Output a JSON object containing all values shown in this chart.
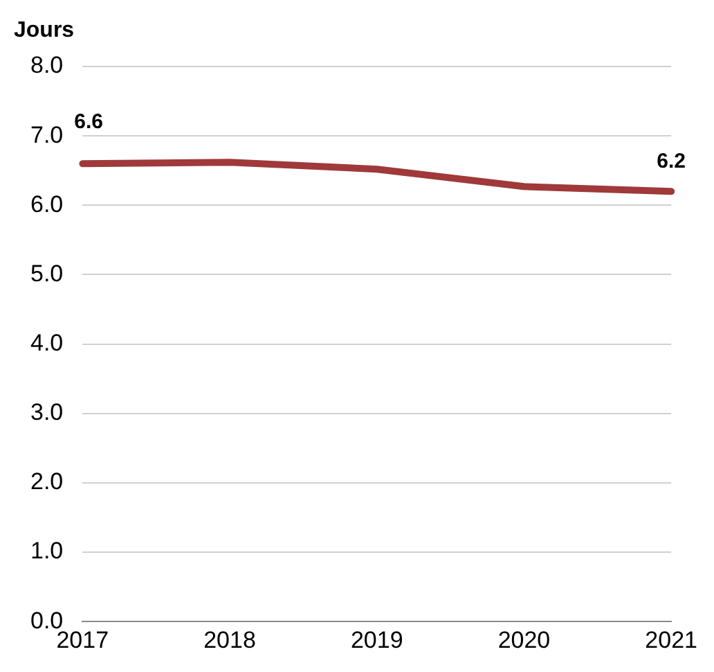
{
  "chart_data": {
    "type": "line",
    "ylabel": "Jours",
    "categories": [
      "2017",
      "2018",
      "2019",
      "2020",
      "2021"
    ],
    "series": [
      {
        "color": "#a0393a",
        "values": [
          6.6,
          6.62,
          6.52,
          6.27,
          6.2
        ],
        "value_labels": [
          "6.6",
          null,
          null,
          null,
          "6.2"
        ]
      }
    ],
    "ylim": [
      0,
      8
    ],
    "yticks": [
      {
        "value": 0,
        "label": "0.0"
      },
      {
        "value": 1,
        "label": "1.0"
      },
      {
        "value": 2,
        "label": "2.0"
      },
      {
        "value": 3,
        "label": "3.0"
      },
      {
        "value": 4,
        "label": "4.0"
      },
      {
        "value": 5,
        "label": "5.0"
      },
      {
        "value": 6,
        "label": "6.0"
      },
      {
        "value": 7,
        "label": "7.0"
      },
      {
        "value": 8,
        "label": "8.0"
      }
    ],
    "grid": "y",
    "legend": false,
    "marker": "none",
    "line_style": "solid"
  }
}
